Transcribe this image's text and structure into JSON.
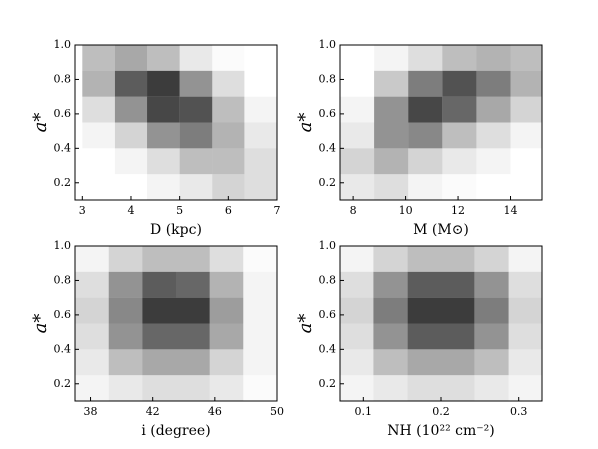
{
  "chart_data": [
    {
      "type": "heatmap",
      "x_label": "D (kpc)",
      "y_label": "a*",
      "xlim": [
        2.85,
        7
      ],
      "xticks": [
        3,
        4,
        5,
        6,
        7
      ],
      "ylim": [
        0.1,
        1.0
      ],
      "yticks": [
        0.2,
        0.4,
        0.6,
        0.8,
        {
          "value": 1,
          "label": "1.0"
        }
      ],
      "xbins": [
        3,
        3.67,
        4.33,
        5,
        5.67,
        6.33,
        7
      ],
      "ybins": [
        0.1,
        0.25,
        0.4,
        0.55,
        0.7,
        0.85,
        1.0
      ],
      "color": "#000000",
      "values": [
        [
          0,
          0,
          0.05,
          0.1,
          0.2,
          0.15
        ],
        [
          0,
          0.05,
          0.15,
          0.3,
          0.3,
          0.15
        ],
        [
          0.05,
          0.2,
          0.5,
          0.6,
          0.35,
          0.1
        ],
        [
          0.15,
          0.5,
          0.85,
          0.8,
          0.3,
          0.05
        ],
        [
          0.35,
          0.75,
          0.9,
          0.5,
          0.15,
          0
        ],
        [
          0.3,
          0.4,
          0.3,
          0.1,
          0.02,
          0
        ]
      ]
    },
    {
      "type": "heatmap",
      "x_label": "M (M⊙)",
      "y_label": "a*",
      "xlim": [
        7.5,
        15.2
      ],
      "xticks": [
        8,
        10,
        12,
        14
      ],
      "ylim": [
        0.1,
        1.0
      ],
      "yticks": [
        0.2,
        0.4,
        0.6,
        0.8,
        {
          "value": 1,
          "label": "1.0"
        }
      ],
      "xbins": [
        7.5,
        8.8,
        10.1,
        11.4,
        12.7,
        14,
        15.2
      ],
      "ybins": [
        0.1,
        0.25,
        0.4,
        0.55,
        0.7,
        0.85,
        1.0
      ],
      "color": "#000000",
      "values": [
        [
          0.1,
          0.15,
          0.05,
          0.02,
          0,
          0
        ],
        [
          0.2,
          0.35,
          0.2,
          0.1,
          0.05,
          0
        ],
        [
          0.1,
          0.5,
          0.55,
          0.3,
          0.15,
          0.05
        ],
        [
          0.05,
          0.5,
          0.85,
          0.7,
          0.4,
          0.2
        ],
        [
          0,
          0.25,
          0.6,
          0.8,
          0.6,
          0.35
        ],
        [
          0,
          0.05,
          0.15,
          0.3,
          0.35,
          0.3
        ]
      ]
    },
    {
      "type": "heatmap",
      "x_label": "i (degree)",
      "y_label": "a*",
      "xlim": [
        37,
        50
      ],
      "xticks": [
        38,
        42,
        46,
        50
      ],
      "ylim": [
        0.1,
        1.0
      ],
      "yticks": [
        0.2,
        0.4,
        0.6,
        0.8,
        {
          "value": 1,
          "label": "1.0"
        }
      ],
      "xbins": [
        37,
        39.17,
        41.33,
        43.5,
        45.67,
        47.83,
        50
      ],
      "ybins": [
        0.1,
        0.25,
        0.4,
        0.55,
        0.7,
        0.85,
        1.0
      ],
      "color": "#000000",
      "values": [
        [
          0.05,
          0.1,
          0.15,
          0.15,
          0.1,
          0.02
        ],
        [
          0.1,
          0.3,
          0.4,
          0.4,
          0.2,
          0.05
        ],
        [
          0.15,
          0.5,
          0.7,
          0.7,
          0.4,
          0.05
        ],
        [
          0.2,
          0.55,
          0.9,
          0.9,
          0.45,
          0.05
        ],
        [
          0.15,
          0.5,
          0.75,
          0.7,
          0.35,
          0.05
        ],
        [
          0.05,
          0.2,
          0.3,
          0.3,
          0.15,
          0.02
        ]
      ]
    },
    {
      "type": "heatmap",
      "x_label": "NH (10²² cm⁻²)",
      "y_label": "a*",
      "xlim": [
        0.07,
        0.33
      ],
      "xticks": [
        0.1,
        0.2,
        0.3
      ],
      "ylim": [
        0.1,
        1.0
      ],
      "yticks": [
        0.2,
        0.4,
        0.6,
        0.8,
        {
          "value": 1,
          "label": "1.0"
        }
      ],
      "xbins": [
        0.07,
        0.113,
        0.157,
        0.2,
        0.243,
        0.287,
        0.33
      ],
      "ybins": [
        0.1,
        0.25,
        0.4,
        0.55,
        0.7,
        0.85,
        1.0
      ],
      "color": "#000000",
      "values": [
        [
          0.05,
          0.1,
          0.15,
          0.15,
          0.1,
          0.05
        ],
        [
          0.1,
          0.3,
          0.4,
          0.4,
          0.3,
          0.1
        ],
        [
          0.15,
          0.5,
          0.75,
          0.75,
          0.5,
          0.15
        ],
        [
          0.2,
          0.6,
          0.9,
          0.9,
          0.6,
          0.2
        ],
        [
          0.15,
          0.5,
          0.75,
          0.75,
          0.5,
          0.15
        ],
        [
          0.05,
          0.2,
          0.3,
          0.3,
          0.2,
          0.05
        ]
      ]
    }
  ]
}
